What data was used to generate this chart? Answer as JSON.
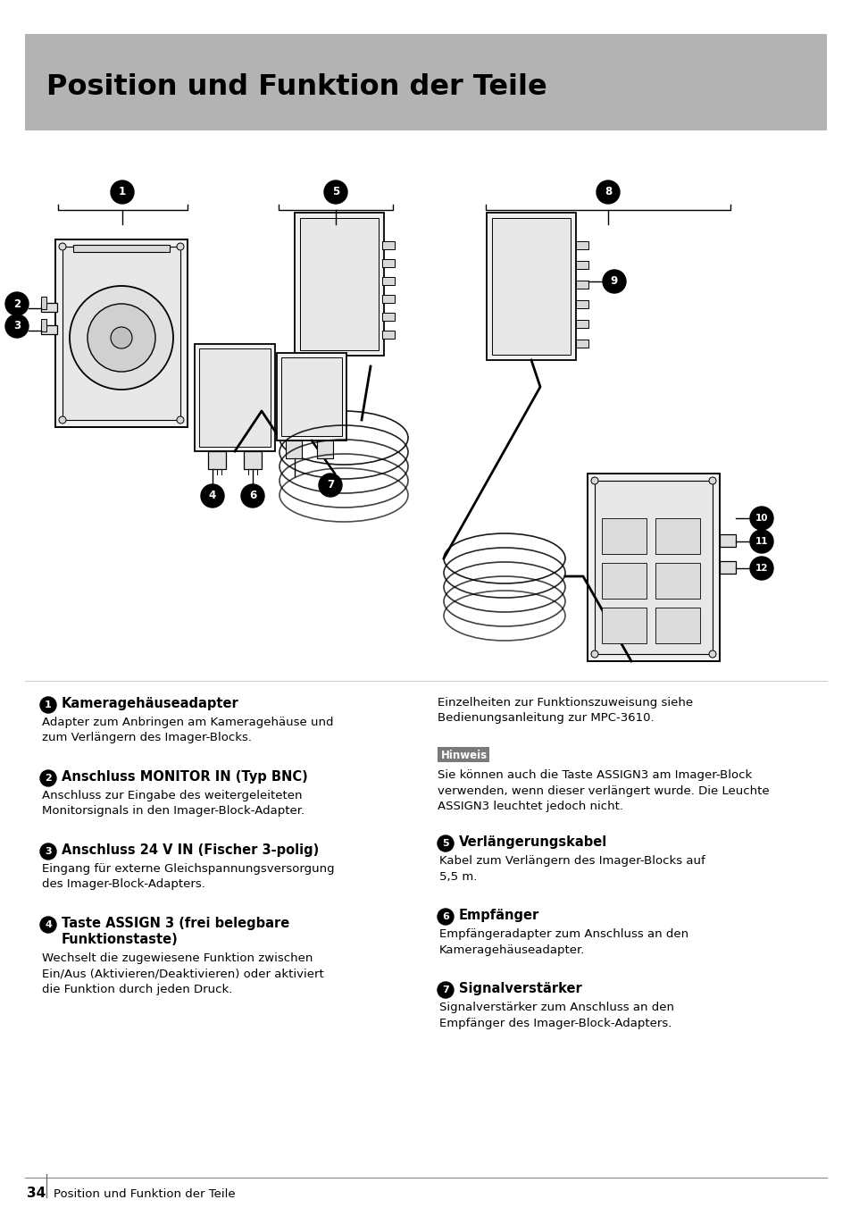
{
  "title": "Position und Funktion der Teile",
  "title_bg_color": "#b3b3b3",
  "page_bg_color": "#ffffff",
  "page_number": "34",
  "footer_text": "Position und Funktion der Teile",
  "hinweis_bg": "#7a7a7a",
  "hinweis_text": "Hinweis",
  "hinweis_body": "Sie können auch die Taste ASSIGN3 am Imager-Block\nverwenden, wenn dieser verlängert wurde. Die Leuchte\nASSIGN3 leuchtet jedoch nicht.",
  "right_top_text": "Einzelheiten zur Funktionszuweisung siehe\nBedienungsanleitung zur MPC-3610.",
  "sections_left": [
    {
      "number": "1",
      "heading": "Kameragehäuseadapter",
      "body": "Adapter zum Anbringen am Kameragehäuse und\nzum Verlängern des Imager-Blocks."
    },
    {
      "number": "2",
      "heading": "Anschluss MONITOR IN (Typ BNC)",
      "body": "Anschluss zur Eingabe des weitergeleiteten\nMonitorsignals in den Imager-Block-Adapter."
    },
    {
      "number": "3",
      "heading": "Anschluss 24 V IN (Fischer 3-polig)",
      "body": "Eingang für externe Gleichspannungsversorgung\ndes Imager-Block-Adapters."
    },
    {
      "number": "4",
      "heading_line1": "Taste ASSIGN 3 (frei belegbare",
      "heading_line2": "Funktionstaste)",
      "body": "Wechselt die zugewiesene Funktion zwischen\nEin/Aus (Aktivieren/Deaktivieren) oder aktiviert\ndie Funktion durch jeden Druck."
    }
  ],
  "sections_right": [
    {
      "number": "5",
      "heading": "Verlängerungskabel",
      "body": "Kabel zum Verlängern des Imager-Blocks auf\n5,5 m."
    },
    {
      "number": "6",
      "heading": "Empfänger",
      "body": "Empfängeradapter zum Anschluss an den\nKameragehäuseadapter."
    },
    {
      "number": "7",
      "heading": "Signalverstärker",
      "body": "Signalverstärker zum Anschluss an den\nEmpfänger des Imager-Block-Adapters."
    }
  ]
}
